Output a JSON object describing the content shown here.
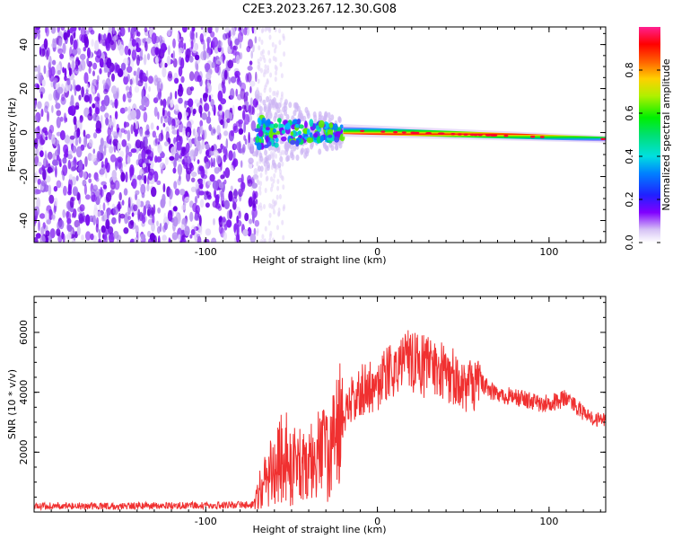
{
  "title": "C2E3.2023.267.12.30.G08",
  "chart_data": [
    {
      "type": "heatmap",
      "xlabel": "Height of straight line (km)",
      "ylabel": "Frequency (Hz)",
      "xlim": [
        -200,
        133
      ],
      "ylim": [
        -50,
        48
      ],
      "xticks": [
        -100,
        0,
        100
      ],
      "yticks": [
        -40,
        -20,
        0,
        20,
        40
      ],
      "colorbar": {
        "label": "Normalized spectral amplitude",
        "range": [
          0,
          1
        ],
        "ticks": [
          "0.0",
          "0.2",
          "0.4",
          "0.6",
          "0.8"
        ]
      },
      "features": {
        "noise_region_x": [
          -200,
          -70
        ],
        "turbulent_region_x": [
          -70,
          -20
        ],
        "tone_region_x": [
          -20,
          133
        ],
        "tone_freq_at_start": 1,
        "tone_freq_at_end": -3
      }
    },
    {
      "type": "line",
      "xlabel": "Height of straight line (km)",
      "ylabel": "SNR (10 * v/v)",
      "xlim": [
        -200,
        133
      ],
      "ylim": [
        0,
        7200
      ],
      "xticks": [
        -100,
        0,
        100
      ],
      "yticks": [
        2000,
        4000,
        6000
      ],
      "color": "#f03030",
      "x": [
        -200,
        -180,
        -160,
        -140,
        -120,
        -100,
        -85,
        -72,
        -68,
        -60,
        -55,
        -50,
        -45,
        -40,
        -35,
        -30,
        -25,
        -20,
        -15,
        -10,
        -5,
        0,
        5,
        10,
        15,
        20,
        25,
        30,
        35,
        40,
        45,
        50,
        55,
        60,
        65,
        70,
        75,
        80,
        85,
        90,
        95,
        100,
        105,
        110,
        115,
        120,
        125,
        133
      ],
      "y": [
        200,
        200,
        200,
        200,
        220,
        220,
        230,
        250,
        800,
        1500,
        1800,
        1700,
        1500,
        1600,
        1800,
        2000,
        2200,
        3000,
        3800,
        4100,
        4200,
        4300,
        4500,
        4800,
        5000,
        5100,
        4900,
        4800,
        4700,
        4600,
        4500,
        4300,
        4200,
        4400,
        4100,
        4000,
        3900,
        3850,
        3800,
        3700,
        3600,
        3650,
        3700,
        3800,
        3600,
        3300,
        3100,
        3100
      ]
    }
  ]
}
